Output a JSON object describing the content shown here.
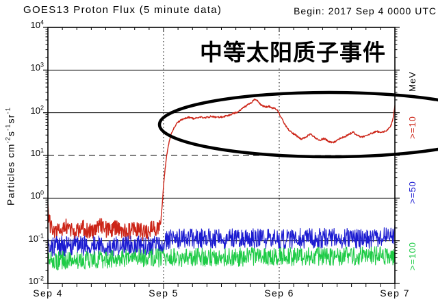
{
  "header": {
    "title": "GOES13 Proton Flux (5 minute data)",
    "begin_label": "Begin: 2017 Sep 4 0000 UTC"
  },
  "annotation": {
    "text": "中等太阳质子事件",
    "highlight": "ellipse around elevated >=10 MeV proton flux"
  },
  "axes": {
    "y_label_segments": [
      {
        "t": "Particles  cm",
        "sup": false
      },
      {
        "t": "-2",
        "sup": true
      },
      {
        "t": "s",
        "sup": false
      },
      {
        "t": "-1",
        "sup": true
      },
      {
        "t": "sr",
        "sup": false
      },
      {
        "t": "-1",
        "sup": true
      }
    ],
    "y_ticks": [
      {
        "base": "10",
        "exp": 4
      },
      {
        "base": "10",
        "exp": 3
      },
      {
        "base": "10",
        "exp": 2
      },
      {
        "base": "10",
        "exp": 1
      },
      {
        "base": "10",
        "exp": 0
      },
      {
        "base": "10",
        "exp": -1
      },
      {
        "base": "10",
        "exp": -2
      }
    ],
    "x_ticks": [
      {
        "label": "Sep 4",
        "t": 0
      },
      {
        "label": "Sep 5",
        "t": 1
      },
      {
        "label": "Sep 6",
        "t": 2
      },
      {
        "label": "Sep 7",
        "t": 3
      }
    ],
    "right_axis": {
      "units_label": "MeV",
      "series_labels": [
        {
          "text": ">=10",
          "color": "#cc2417"
        },
        {
          "text": ">=50",
          "color": "#1b1bd1"
        },
        {
          "text": ">=100",
          "color": "#1ecb46"
        }
      ]
    }
  },
  "colors": {
    "red": "#cc2417",
    "blue": "#1b1bd1",
    "green": "#1ecb46",
    "axis": "#000000",
    "background": "#ffffff"
  },
  "chart_data": {
    "type": "line",
    "title": "GOES13 Proton Flux (5 minute data)",
    "x_axis": {
      "tick_labels": [
        "Sep 4",
        "Sep 5",
        "Sep 6",
        "Sep 7"
      ],
      "range_days": [
        0,
        3
      ],
      "minor_tick_hours": 3
    },
    "y_axis": {
      "label": "Particles cm^-2 s^-1 sr^-1",
      "scale": "log",
      "range": [
        0.01,
        10000
      ]
    },
    "grid": {
      "solid_lines_at": [
        1000,
        100,
        1,
        0.1
      ],
      "dashed_line_at": 10,
      "vertical_dotted_days": [
        1,
        2
      ]
    },
    "legend_position": "right-rotated",
    "noise_seed": 20170904,
    "series": [
      {
        "name": ">=10 MeV",
        "color": "#cc2417",
        "noise_log": 0.2,
        "noise_until_t": 0.97,
        "anchors_t_flux": [
          [
            0.0,
            0.55
          ],
          [
            0.01,
            0.3
          ],
          [
            0.03,
            0.2
          ],
          [
            0.08,
            0.17
          ],
          [
            0.15,
            0.22
          ],
          [
            0.22,
            0.15
          ],
          [
            0.3,
            0.2
          ],
          [
            0.38,
            0.16
          ],
          [
            0.45,
            0.24
          ],
          [
            0.52,
            0.17
          ],
          [
            0.6,
            0.2
          ],
          [
            0.68,
            0.15
          ],
          [
            0.75,
            0.21
          ],
          [
            0.82,
            0.16
          ],
          [
            0.9,
            0.19
          ],
          [
            0.95,
            0.17
          ],
          [
            0.975,
            0.25
          ],
          [
            0.99,
            0.8
          ],
          [
            1.0,
            2
          ],
          [
            1.012,
            4.5
          ],
          [
            1.025,
            9
          ],
          [
            1.04,
            16
          ],
          [
            1.055,
            25
          ],
          [
            1.07,
            33
          ],
          [
            1.09,
            45
          ],
          [
            1.11,
            55
          ],
          [
            1.14,
            65
          ],
          [
            1.17,
            70
          ],
          [
            1.21,
            78
          ],
          [
            1.26,
            73
          ],
          [
            1.31,
            80
          ],
          [
            1.36,
            76
          ],
          [
            1.41,
            82
          ],
          [
            1.46,
            78
          ],
          [
            1.51,
            80
          ],
          [
            1.56,
            86
          ],
          [
            1.6,
            95
          ],
          [
            1.64,
            105
          ],
          [
            1.68,
            125
          ],
          [
            1.72,
            148
          ],
          [
            1.75,
            168
          ],
          [
            1.78,
            195
          ],
          [
            1.8,
            210
          ],
          [
            1.82,
            175
          ],
          [
            1.85,
            148
          ],
          [
            1.88,
            136
          ],
          [
            1.91,
            142
          ],
          [
            1.94,
            128
          ],
          [
            1.97,
            124
          ],
          [
            1.995,
            102
          ],
          [
            2.02,
            75
          ],
          [
            2.05,
            52
          ],
          [
            2.08,
            40
          ],
          [
            2.11,
            34
          ],
          [
            2.15,
            29
          ],
          [
            2.19,
            24
          ],
          [
            2.23,
            27
          ],
          [
            2.27,
            32
          ],
          [
            2.31,
            26
          ],
          [
            2.35,
            23
          ],
          [
            2.39,
            25
          ],
          [
            2.43,
            21
          ],
          [
            2.47,
            20
          ],
          [
            2.51,
            24
          ],
          [
            2.56,
            27
          ],
          [
            2.6,
            31
          ],
          [
            2.64,
            35
          ],
          [
            2.68,
            29
          ],
          [
            2.72,
            27
          ],
          [
            2.76,
            30
          ],
          [
            2.8,
            33
          ],
          [
            2.84,
            37
          ],
          [
            2.88,
            34
          ],
          [
            2.92,
            37
          ],
          [
            2.95,
            43
          ],
          [
            2.97,
            52
          ],
          [
            2.985,
            75
          ],
          [
            2.995,
            115
          ],
          [
            3.0,
            150
          ]
        ]
      },
      {
        "name": ">=50 MeV",
        "color": "#1b1bd1",
        "noise_log": 0.24,
        "noise_until_t": 3.0,
        "anchors_t_flux": [
          [
            0,
            0.075
          ],
          [
            0.97,
            0.075
          ],
          [
            1.05,
            0.11
          ],
          [
            2.9,
            0.115
          ],
          [
            3,
            0.14
          ]
        ]
      },
      {
        "name": ">=100 MeV",
        "color": "#1ecb46",
        "noise_log": 0.22,
        "noise_until_t": 3.0,
        "anchors_t_flux": [
          [
            0,
            0.034
          ],
          [
            1,
            0.04
          ],
          [
            3,
            0.045
          ]
        ]
      }
    ]
  }
}
